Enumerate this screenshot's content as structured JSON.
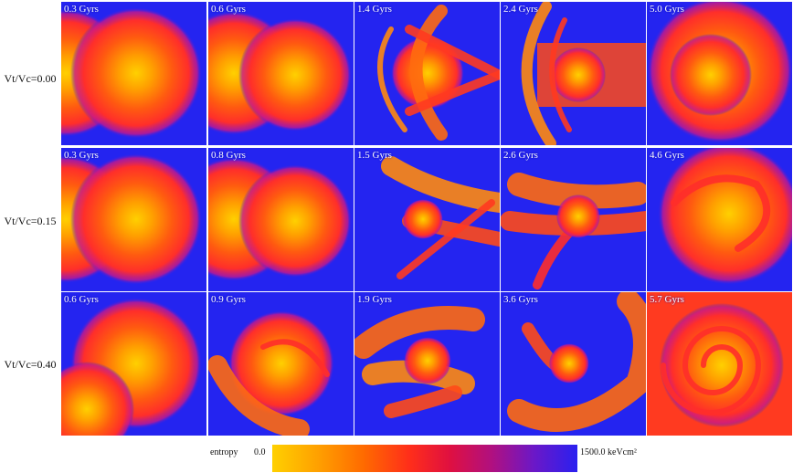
{
  "row_labels": [
    "Vt/Vc=0.00",
    "Vt/Vc=0.15",
    "Vt/Vc=0.40"
  ],
  "rows": [
    {
      "panels": [
        {
          "time": "0.3 Gyrs",
          "morph": "pre"
        },
        {
          "time": "0.6 Gyrs",
          "morph": "pre2"
        },
        {
          "time": "1.4 Gyrs",
          "morph": "bow"
        },
        {
          "time": "2.4 Gyrs",
          "morph": "bow2"
        },
        {
          "time": "5.0 Gyrs",
          "morph": "relax"
        }
      ]
    },
    {
      "panels": [
        {
          "time": "0.3 Gyrs",
          "morph": "pre"
        },
        {
          "time": "0.8 Gyrs",
          "morph": "pre2"
        },
        {
          "time": "1.5 Gyrs",
          "morph": "tilt"
        },
        {
          "time": "2.6 Gyrs",
          "morph": "tilt2"
        },
        {
          "time": "4.6 Gyrs",
          "morph": "swirl"
        }
      ]
    },
    {
      "panels": [
        {
          "time": "0.6 Gyrs",
          "morph": "pre3"
        },
        {
          "time": "0.9 Gyrs",
          "morph": "merge"
        },
        {
          "time": "1.9 Gyrs",
          "morph": "merge2"
        },
        {
          "time": "3.6 Gyrs",
          "morph": "arc"
        },
        {
          "time": "5.7 Gyrs",
          "morph": "spiral"
        }
      ]
    }
  ],
  "colorbar": {
    "label": "entropy",
    "min_label": "0.0",
    "max_label": "1500.0 keVcm²"
  },
  "colors": {
    "background": "#2424f0",
    "low": "#ffd000",
    "mid": "#ff2e1a",
    "high": "#2a20f0"
  }
}
